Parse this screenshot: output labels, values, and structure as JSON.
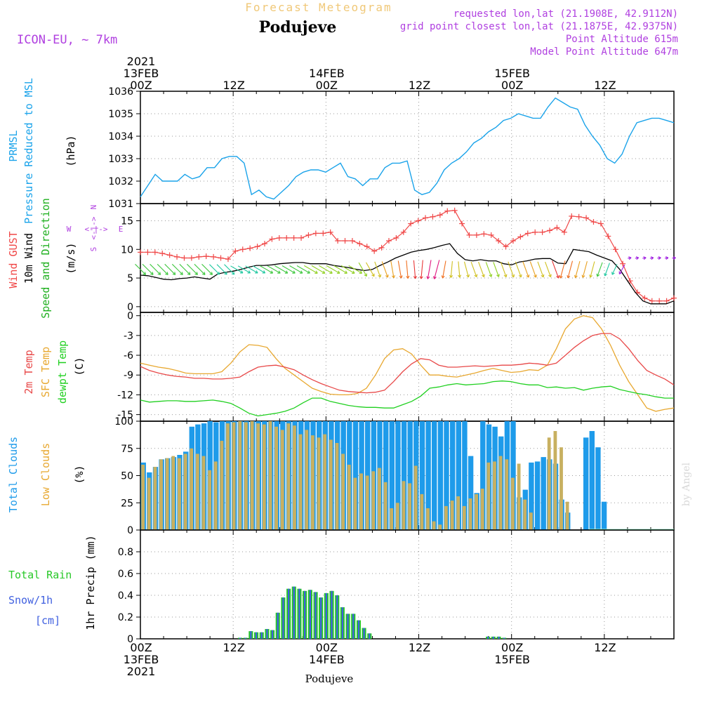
{
  "header": {
    "title": "Forecast Meteogram",
    "location": "Podujeve",
    "model": "ICON-EU, ~ 7km",
    "requested": "requested lon,lat (21.1908E, 42.9112N)",
    "grid_point": "grid point closest lon,lat (21.1875E, 42.9375N)",
    "point_altitude": "Point Altitude 615m",
    "model_altitude": "Model Point Altitude 647m",
    "footer": "Podujeve",
    "watermark": "by Angel"
  },
  "colors": {
    "pressure": "#1aa3ea",
    "gust": "#f04848",
    "wind": "#000000",
    "temp2m": "#e84848",
    "sfc": "#e8a830",
    "dewpt": "#20d020",
    "total_clouds": "#1e9bea",
    "low_clouds": "#c8b060",
    "rain": "#28c828",
    "snow": "#4060e0",
    "wind_dir_label": "#b040e0",
    "header_purple": "#b040e0",
    "title_color": "#f0c878"
  },
  "time_axis": {
    "hours_total": 69,
    "top_labels": [
      {
        "hour": 0,
        "lines": [
          "2021",
          "13FEB",
          "00Z"
        ]
      },
      {
        "hour": 12,
        "lines": [
          "12Z"
        ]
      },
      {
        "hour": 24,
        "lines": [
          "14FEB",
          "00Z"
        ]
      },
      {
        "hour": 36,
        "lines": [
          "12Z"
        ]
      },
      {
        "hour": 48,
        "lines": [
          "15FEB",
          "00Z"
        ]
      },
      {
        "hour": 60,
        "lines": [
          "12Z"
        ]
      }
    ],
    "bottom_labels": [
      {
        "hour": 0,
        "lines": [
          "00Z",
          "13FEB",
          "2021"
        ]
      },
      {
        "hour": 12,
        "lines": [
          "12Z"
        ]
      },
      {
        "hour": 24,
        "lines": [
          "00Z",
          "14FEB"
        ]
      },
      {
        "hour": 36,
        "lines": [
          "12Z"
        ]
      },
      {
        "hour": 48,
        "lines": [
          "00Z",
          "15FEB"
        ]
      },
      {
        "hour": 60,
        "lines": [
          "12Z"
        ]
      }
    ]
  },
  "chart_data": [
    {
      "type": "line",
      "panel": "pressure",
      "ylabel_lines": [
        "PRMSL",
        "Pressure Reduced to MSL"
      ],
      "unit": "(hPa)",
      "ylim": [
        1031,
        1036
      ],
      "yticks": [
        1031,
        1032,
        1033,
        1034,
        1035,
        1036
      ],
      "series": [
        {
          "name": "PRMSL",
          "values": [
            1031.3,
            1031.8,
            1032.3,
            1032.0,
            1032.0,
            1032.0,
            1032.3,
            1032.1,
            1032.2,
            1032.6,
            1032.6,
            1033.0,
            1033.1,
            1033.1,
            1032.8,
            1031.4,
            1031.6,
            1031.3,
            1031.2,
            1031.5,
            1031.8,
            1032.2,
            1032.4,
            1032.5,
            1032.5,
            1032.4,
            1032.6,
            1032.8,
            1032.2,
            1032.1,
            1031.8,
            1032.1,
            1032.1,
            1032.6,
            1032.8,
            1032.8,
            1032.9,
            1031.6,
            1031.4,
            1031.5,
            1031.9,
            1032.5,
            1032.8,
            1033.0,
            1033.3,
            1033.7,
            1033.9,
            1034.2,
            1034.4,
            1034.7,
            1034.8,
            1035.0,
            1034.9,
            1034.8,
            1034.8,
            1035.3,
            1035.7,
            1035.5,
            1035.3,
            1035.2,
            1034.5,
            1034.0,
            1033.6,
            1033.0,
            1032.8,
            1033.2,
            1034.0,
            1034.6,
            1034.7,
            1034.8,
            1034.8,
            1034.7,
            1034.6
          ]
        }
      ]
    },
    {
      "type": "line",
      "panel": "wind",
      "ylabel_lines": [
        "Wind GUST",
        "10m Wind",
        "Speed and Direction"
      ],
      "unit": "(m/s)",
      "ylim": [
        -1,
        18
      ],
      "yticks": [
        0,
        5,
        10,
        15
      ],
      "compass": {
        "n": "N",
        "s": "S",
        "w": "W",
        "e": "E"
      },
      "series": [
        {
          "name": "Wind GUST",
          "values": [
            9.5,
            9.5,
            9.5,
            9.3,
            9.0,
            8.7,
            8.5,
            8.5,
            8.7,
            8.8,
            8.7,
            8.5,
            8.3,
            9.7,
            10.0,
            10.2,
            10.5,
            11.0,
            11.8,
            12.0,
            12.0,
            12.0,
            12.0,
            12.5,
            12.8,
            12.8,
            13.0,
            11.5,
            11.5,
            11.5,
            11.0,
            10.5,
            9.7,
            10.3,
            11.5,
            12.0,
            13.0,
            14.5,
            15.0,
            15.5,
            15.7,
            16.0,
            16.7,
            16.8,
            14.5,
            12.5,
            12.5,
            12.7,
            12.5,
            11.5,
            10.5,
            11.5,
            12.2,
            12.8,
            13.0,
            13.0,
            13.3,
            13.8,
            13.0,
            15.8,
            15.7,
            15.5,
            14.8,
            14.5,
            12.3,
            10.0,
            7.5,
            4.5,
            2.5,
            1.5,
            1.0,
            1.0,
            1.0,
            1.5
          ]
        },
        {
          "name": "10m Wind",
          "values": [
            5.5,
            5.4,
            5.1,
            4.8,
            4.7,
            4.9,
            5.0,
            5.2,
            5.0,
            4.8,
            5.7,
            6.0,
            6.2,
            6.5,
            6.9,
            7.2,
            7.2,
            7.3,
            7.5,
            7.6,
            7.7,
            7.7,
            7.5,
            7.5,
            7.5,
            7.2,
            7.0,
            6.8,
            6.5,
            6.3,
            6.5,
            7.2,
            7.8,
            8.5,
            9.0,
            9.5,
            9.8,
            10.0,
            10.3,
            10.7,
            11.0,
            9.3,
            8.2,
            8.0,
            8.2,
            8.0,
            8.0,
            7.5,
            7.3,
            7.8,
            8.0,
            8.3,
            8.4,
            8.4,
            7.6,
            7.5,
            10.0,
            9.8,
            9.6,
            9.0,
            8.5,
            8.0,
            6.5,
            4.5,
            2.5,
            1.0,
            0.5,
            0.5,
            0.5,
            1.0
          ]
        }
      ],
      "direction_deg": [
        315,
        315,
        315,
        315,
        315,
        315,
        315,
        315,
        315,
        315,
        315,
        315,
        315,
        300,
        300,
        300,
        300,
        300,
        300,
        300,
        300,
        300,
        300,
        300,
        300,
        300,
        300,
        300,
        300,
        300,
        330,
        330,
        340,
        340,
        350,
        350,
        355,
        355,
        5,
        10,
        15,
        10,
        5,
        355,
        345,
        340,
        340,
        340,
        340,
        340,
        340,
        340,
        340,
        340,
        340,
        340,
        340,
        15,
        15,
        15,
        15,
        15,
        20,
        20,
        25,
        30,
        260,
        260,
        260,
        260,
        265,
        265,
        265
      ],
      "speed_for_color": [
        7.5,
        7.5,
        7.5,
        7.5,
        7.5,
        7.5,
        7.5,
        7.5,
        7.5,
        7.5,
        6.5,
        6.5,
        6.5,
        6.5,
        6.5,
        6.5,
        6.5,
        7.5,
        7.5,
        7.5,
        7.5,
        7.5,
        7.5,
        8.0,
        8.0,
        8.0,
        8.0,
        8.0,
        8.0,
        8.0,
        8.5,
        9.0,
        9.5,
        10.0,
        10.5,
        11.0,
        11.5,
        12.0,
        12.5,
        13.0,
        13.5,
        11.0,
        9.5,
        9.0,
        9.0,
        9.0,
        9.0,
        8.5,
        8.5,
        9.0,
        9.5,
        9.5,
        10.0,
        10.0,
        9.5,
        9.0,
        12.0,
        11.5,
        11.0,
        10.5,
        10.0,
        9.5,
        7.5,
        6.0,
        3.0,
        2.0,
        2.0,
        2.0,
        2.0,
        2.0,
        2.0,
        2.0,
        2.0
      ]
    },
    {
      "type": "line",
      "panel": "temperature",
      "ylabel_lines": [
        "2m Temp",
        "SFC Temp",
        "dewpt Temp"
      ],
      "unit": "(C)",
      "ylim": [
        -16,
        0.5
      ],
      "yticks": [
        0,
        -3,
        -6,
        -9,
        -12,
        -15
      ],
      "series": [
        {
          "name": "2m Temp",
          "values": [
            -7.7,
            -8.3,
            -8.7,
            -9.0,
            -9.2,
            -9.3,
            -9.5,
            -9.5,
            -9.6,
            -9.6,
            -9.5,
            -9.3,
            -8.5,
            -7.8,
            -7.6,
            -7.5,
            -7.8,
            -8.2,
            -9.0,
            -9.7,
            -10.3,
            -10.8,
            -11.3,
            -11.5,
            -11.6,
            -11.7,
            -11.6,
            -11.3,
            -10.0,
            -8.5,
            -7.3,
            -6.5,
            -6.7,
            -7.5,
            -7.8,
            -7.8,
            -7.7,
            -7.6,
            -7.7,
            -7.6,
            -7.5,
            -7.5,
            -7.4,
            -7.2,
            -7.3,
            -7.5,
            -7.2,
            -6.0,
            -4.8,
            -3.8,
            -3.0,
            -2.7,
            -2.7,
            -3.5,
            -5.0,
            -6.8,
            -8.3,
            -9.0,
            -9.6,
            -10.5
          ]
        },
        {
          "name": "SFC Temp",
          "values": [
            -7.2,
            -7.5,
            -7.8,
            -8.0,
            -8.3,
            -8.7,
            -8.8,
            -8.8,
            -8.8,
            -8.5,
            -7.2,
            -5.5,
            -4.4,
            -4.5,
            -4.8,
            -6.5,
            -8.0,
            -9.0,
            -10.0,
            -11.0,
            -11.5,
            -11.9,
            -12.0,
            -12.0,
            -11.8,
            -11.0,
            -9.0,
            -6.5,
            -5.2,
            -5.0,
            -5.8,
            -7.5,
            -9.0,
            -9.0,
            -9.2,
            -9.3,
            -9.0,
            -8.7,
            -8.3,
            -8.0,
            -8.3,
            -8.6,
            -8.5,
            -8.2,
            -8.3,
            -7.5,
            -5.0,
            -2.0,
            -0.5,
            0.0,
            -0.3,
            -2.0,
            -4.5,
            -7.5,
            -10.0,
            -12.0,
            -14.0,
            -14.5,
            -14.2,
            -14.0
          ]
        },
        {
          "name": "dewpt Temp",
          "values": [
            -12.8,
            -13.1,
            -13.0,
            -12.9,
            -12.9,
            -13.0,
            -13.0,
            -12.9,
            -12.8,
            -13.0,
            -13.3,
            -14.0,
            -14.8,
            -15.2,
            -15.0,
            -14.8,
            -14.5,
            -14.0,
            -13.2,
            -12.5,
            -12.5,
            -13.0,
            -13.3,
            -13.6,
            -13.8,
            -13.9,
            -13.9,
            -14.0,
            -14.0,
            -13.5,
            -13.0,
            -12.2,
            -11.0,
            -10.8,
            -10.5,
            -10.3,
            -10.5,
            -10.4,
            -10.3,
            -10.0,
            -9.9,
            -10.0,
            -10.3,
            -10.5,
            -10.5,
            -10.9,
            -10.8,
            -11.0,
            -10.9,
            -11.3,
            -11.0,
            -10.8,
            -10.7,
            -11.2,
            -11.5,
            -11.8,
            -12.0,
            -12.3,
            -12.5,
            -12.5
          ]
        }
      ]
    },
    {
      "type": "bar",
      "panel": "clouds",
      "ylabel_lines": [
        "Total Clouds",
        "Low Clouds"
      ],
      "unit": "(%)",
      "ylim": [
        0,
        100
      ],
      "yticks": [
        0,
        25,
        50,
        75,
        100
      ],
      "series": [
        {
          "name": "Total Clouds",
          "values": [
            62,
            53,
            58,
            65,
            66,
            67,
            69,
            72,
            95,
            97,
            98,
            100,
            99,
            100,
            100,
            100,
            100,
            100,
            100,
            100,
            100,
            100,
            100,
            100,
            100,
            100,
            100,
            100,
            100,
            100,
            100,
            100,
            100,
            100,
            100,
            100,
            100,
            100,
            100,
            100,
            100,
            100,
            100,
            100,
            100,
            100,
            100,
            100,
            100,
            100,
            100,
            100,
            100,
            100,
            68,
            34,
            100,
            97,
            95,
            86,
            100,
            100,
            30,
            37,
            62,
            63,
            67,
            65,
            61,
            28,
            16,
            0,
            0,
            85,
            91,
            76,
            26,
            0,
            0,
            0,
            0,
            0,
            0,
            0,
            0,
            0,
            0,
            0
          ]
        },
        {
          "name": "Low Clouds",
          "values": [
            60,
            48,
            58,
            65,
            66,
            68,
            66,
            70,
            75,
            70,
            68,
            55,
            63,
            82,
            98,
            99,
            100,
            99,
            100,
            98,
            97,
            100,
            95,
            92,
            98,
            96,
            88,
            92,
            87,
            85,
            88,
            83,
            80,
            70,
            60,
            48,
            52,
            50,
            54,
            57,
            44,
            20,
            25,
            45,
            43,
            59,
            33,
            20,
            8,
            5,
            22,
            27,
            31,
            22,
            29,
            33,
            38,
            62,
            63,
            68,
            65,
            48,
            61,
            28,
            16,
            0,
            0,
            85,
            91,
            76,
            26,
            0,
            0,
            0,
            0,
            0,
            0,
            0,
            0,
            0,
            0,
            0,
            0,
            0,
            0,
            0,
            0,
            0
          ]
        }
      ]
    },
    {
      "type": "bar",
      "panel": "precipitation",
      "ylabel_lines": [
        "1hr Precip (mm)"
      ],
      "legend_lines": [
        "Total Rain",
        "Snow/1h",
        "[cm]"
      ],
      "ylim": [
        0,
        1.0
      ],
      "yticks": [
        0,
        0.2,
        0.4,
        0.6,
        0.8
      ],
      "series": [
        {
          "name": "Total Rain",
          "values": [
            0,
            0,
            0,
            0,
            0,
            0,
            0,
            0,
            0,
            0,
            0,
            0,
            0,
            0,
            0,
            0,
            0,
            0,
            0.01,
            0.01,
            0.07,
            0.06,
            0.06,
            0.09,
            0.08,
            0.24,
            0.38,
            0.46,
            0.48,
            0.46,
            0.44,
            0.45,
            0.43,
            0.38,
            0.42,
            0.44,
            0.4,
            0.29,
            0.23,
            0.23,
            0.17,
            0.1,
            0.05,
            0,
            0,
            0,
            0,
            0,
            0,
            0,
            0,
            0,
            0,
            0,
            0,
            0,
            0,
            0,
            0,
            0,
            0,
            0,
            0,
            0,
            0.02,
            0.02,
            0.02,
            0.01,
            0,
            0,
            0,
            0,
            0,
            0,
            0,
            0,
            0,
            0,
            0,
            0,
            0,
            0,
            0,
            0,
            0,
            0,
            0,
            0,
            0,
            0,
            0,
            0,
            0,
            0,
            0,
            0,
            0,
            0,
            0
          ]
        }
      ]
    }
  ]
}
